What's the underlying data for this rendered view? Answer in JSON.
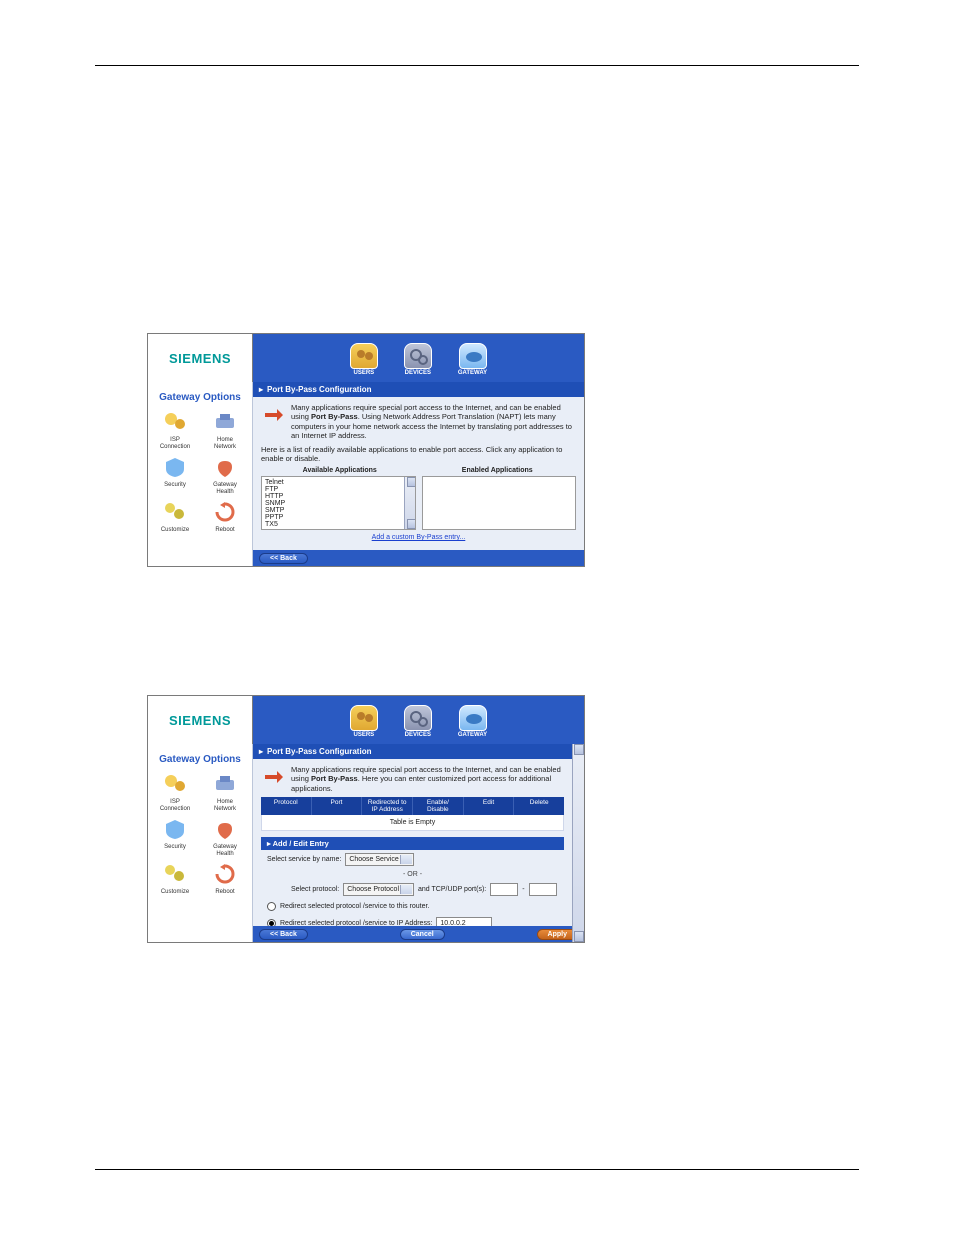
{
  "page": {
    "link_text": "",
    "link_color": "#1a3fcf"
  },
  "logo": "SIEMENS",
  "nav": {
    "users": "USERS",
    "devices": "DEVICES",
    "gateway": "GATEWAY"
  },
  "sidebar": {
    "title": "Gateway Options",
    "items": [
      {
        "label": "ISP\nConnection",
        "color": "#f5cf5a"
      },
      {
        "label": "Home\nNetwork",
        "color": "#8fa8d8"
      },
      {
        "label": "Security",
        "color": "#7ab7f0"
      },
      {
        "label": "Gateway\nHealth",
        "color": "#e06b4a"
      },
      {
        "label": "Customize",
        "color": "#e8d45a"
      },
      {
        "label": "Reboot",
        "color": "#e06b4a"
      }
    ]
  },
  "win1": {
    "title": "Port By-Pass Configuration",
    "intro_html": "Many applications require special port access to the Internet, and can be enabled using <b>Port By-Pass</b>. Using Network Address Port Translation (NAPT) lets many computers in your home network access the Internet by translating port addresses to an Internet IP address.",
    "sub": "Here is a list of readily available applications to enable port access. Click any application to enable or disable.",
    "col1": "Available Applications",
    "col2": "Enabled Applications",
    "apps": [
      "Telnet",
      "FTP",
      "HTTP",
      "SNMP",
      "SMTP",
      "PPTP",
      "TX5"
    ],
    "custom_link": "Add a custom By-Pass entry...",
    "back_btn": "<< Back"
  },
  "win2": {
    "title": "Port By-Pass Configuration",
    "intro_html": "Many applications require special port access to the Internet, and can be enabled using <b>Port By-Pass</b>. Here you can enter customized port access for additional applications.",
    "table": {
      "cols": [
        "Protocol",
        "Port",
        "Redirected to\nIP Address",
        "Enable/\nDisable",
        "Edit",
        "Delete"
      ],
      "empty": "Table is Empty"
    },
    "subbar": "Add / Edit Entry",
    "row1_label": "Select service by name:",
    "row1_select": "Choose Service",
    "or": "- OR -",
    "row2_label": "Select protocol:",
    "row2_select": "Choose Protocol",
    "row2_mid": "and TCP/UDP port(s):",
    "row2_dash": "-",
    "radio1": "Redirect selected protocol /service to this router.",
    "radio2_label": "Redirect selected protocol /service to IP Address:",
    "radio2_value": "10.0.0.2",
    "back_btn": "<< Back",
    "cancel_btn": "Cancel",
    "apply_btn": "Apply"
  },
  "style": {
    "nav_bg": "#2a5ac2",
    "titlebar_bg": "#1f4fb6",
    "body_bg": "#e9eef7",
    "apply_bg": "#c4641c"
  }
}
